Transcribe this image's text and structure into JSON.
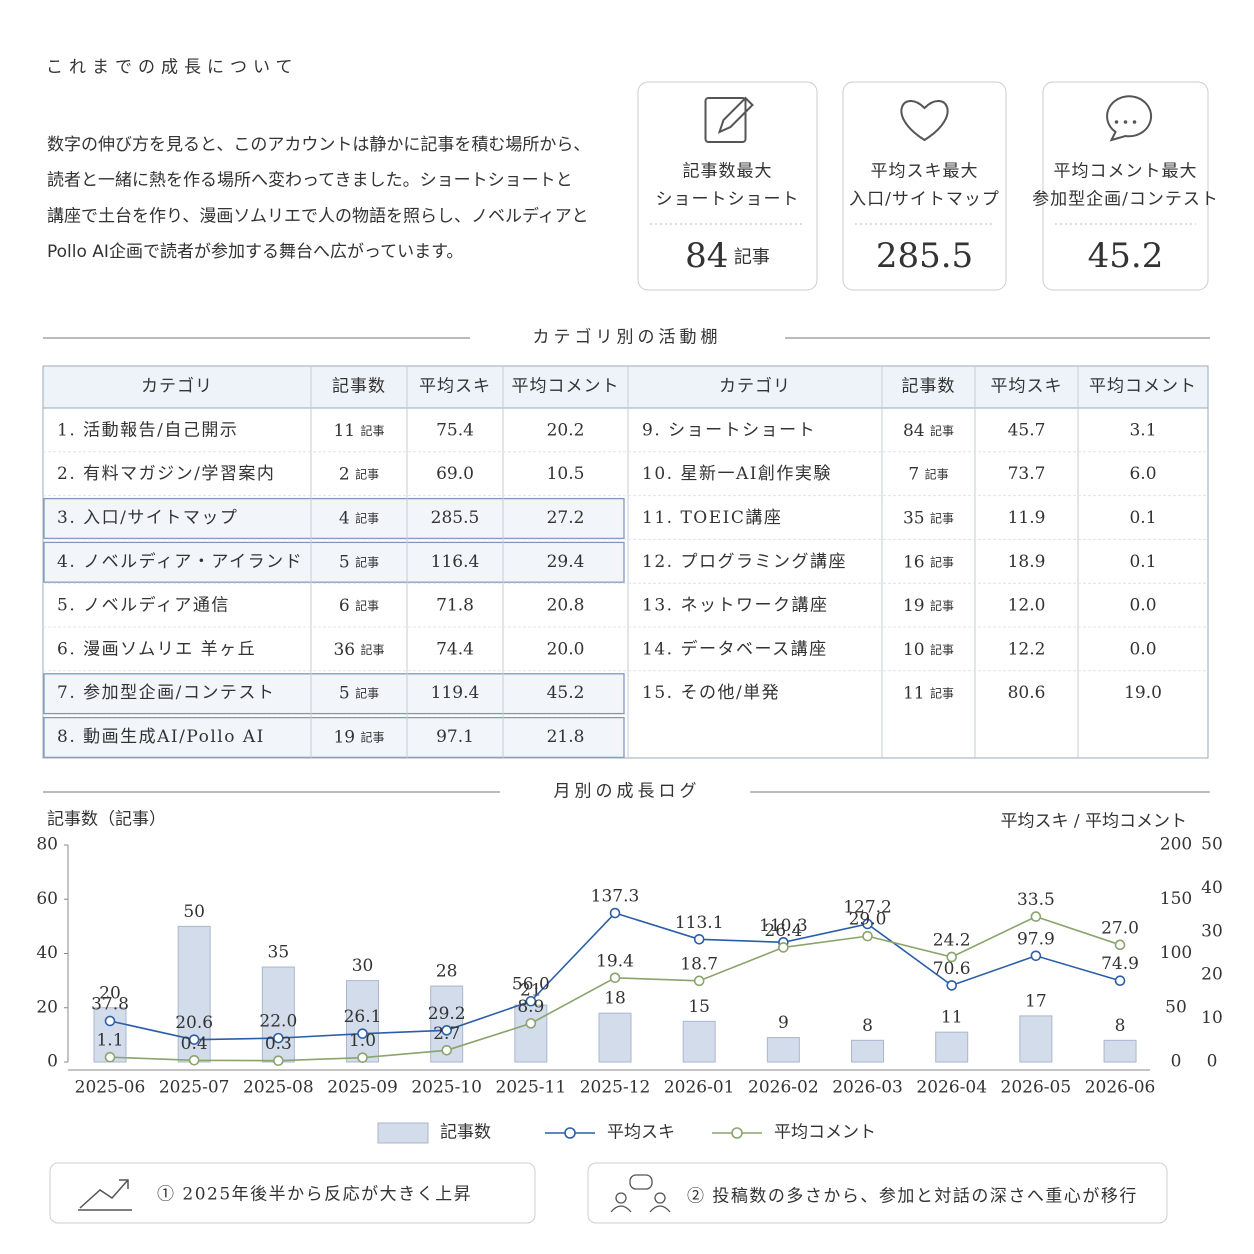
{
  "title": "これまでの成長について",
  "intro": {
    "lines": [
      "数字の伸び方を見ると、このアカウントは静かに記事を積む場所から、",
      "読者と一緒に熱を作る場所へ変わってきました。ショートショートと",
      "講座で土台を作り、漫画ソムリエで人の物語を照らし、ノベルディアと",
      "Pollo AI企画で読者が参加する舞台へ広がっています。"
    ]
  },
  "cards": [
    {
      "label": [
        "記事数最大",
        "ショートショート"
      ],
      "value": "84",
      "unit": "記事"
    },
    {
      "label": [
        "平均スキ最大",
        "入口/サイトマップ"
      ],
      "value": "285.5"
    },
    {
      "label": [
        "平均コメント最大",
        "参加型企画/コンテスト"
      ],
      "value": "45.2"
    }
  ],
  "section1": "カテゴリ別の活動棚",
  "table": {
    "columns": [
      "カテゴリ",
      "記事数",
      "平均スキ",
      "平均コメント"
    ],
    "unit": "記事",
    "rows": [
      {
        "cells": [
          "1. 活動報告/自己開示",
          "11",
          "75.4",
          "20.2"
        ]
      },
      {
        "cells": [
          "2. 有料マガジン/学習案内",
          "2",
          "69.0",
          "10.5"
        ]
      },
      {
        "cells": [
          "3. 入口/サイトマップ",
          "4",
          "285.5",
          "27.2"
        ],
        "highlight": true
      },
      {
        "cells": [
          "4. ノベルディア・アイランド",
          "5",
          "116.4",
          "29.4"
        ],
        "highlight": true
      },
      {
        "cells": [
          "5. ノベルディア通信",
          "6",
          "71.8",
          "20.8"
        ]
      },
      {
        "cells": [
          "6. 漫画ソムリエ 羊ヶ丘",
          "36",
          "74.4",
          "20.0"
        ]
      },
      {
        "cells": [
          "7. 参加型企画/コンテスト",
          "5",
          "119.4",
          "45.2"
        ],
        "highlight": true
      },
      {
        "cells": [
          "8. 動画生成AI/Pollo AI",
          "19",
          "97.1",
          "21.8"
        ],
        "highlight": true
      },
      {
        "cells": [
          "9. ショートショート",
          "84",
          "45.7",
          "3.1"
        ]
      },
      {
        "cells": [
          "10. 星新一AI創作実験",
          "7",
          "73.7",
          "6.0"
        ]
      },
      {
        "cells": [
          "11. TOEIC講座",
          "35",
          "11.9",
          "0.1"
        ]
      },
      {
        "cells": [
          "12. プログラミング講座",
          "16",
          "18.9",
          "0.1"
        ]
      },
      {
        "cells": [
          "13. ネットワーク講座",
          "19",
          "12.0",
          "0.0"
        ]
      },
      {
        "cells": [
          "14. データベース講座",
          "10",
          "12.2",
          "0.0"
        ]
      },
      {
        "cells": [
          "15. その他/単発",
          "11",
          "80.6",
          "19.0"
        ]
      }
    ]
  },
  "section2": "月別の成長ログ",
  "chart_data": {
    "type": "bar-line",
    "y_label": "記事数（記事）",
    "y2_label": "平均スキ / 平均コメント",
    "categories": [
      "2025-06",
      "2025-07",
      "2025-08",
      "2025-09",
      "2025-10",
      "2025-11",
      "2025-12",
      "2026-01",
      "2026-02",
      "2026-03",
      "2026-04",
      "2026-05",
      "2026-06"
    ],
    "series": [
      {
        "name": "記事数",
        "type": "bar",
        "color": "#d3dcea",
        "values": [
          20,
          50,
          35,
          30,
          28,
          21,
          18,
          15,
          9,
          8,
          11,
          17,
          8
        ]
      },
      {
        "name": "平均スキ",
        "type": "line",
        "axis": "y2",
        "color": "#2b5ea8",
        "values": [
          37.8,
          20.6,
          22.0,
          26.1,
          29.2,
          56.0,
          137.3,
          113.1,
          110.3,
          127.2,
          70.6,
          97.9,
          74.9
        ],
        "value_labels": [
          "37.8",
          "20.6",
          "22.0",
          "26.1",
          "29.2",
          "56.0",
          "137.3",
          "113.1",
          "110.3",
          "127.2",
          "70.6",
          "97.9",
          "74.9"
        ]
      },
      {
        "name": "平均コメント",
        "type": "line",
        "axis": "y3",
        "color": "#8aa46c",
        "values": [
          1.1,
          0.4,
          0.3,
          1.0,
          2.7,
          8.9,
          19.4,
          18.7,
          26.4,
          29.0,
          24.2,
          33.5,
          27.0
        ],
        "value_labels": [
          "1.1",
          "0.4",
          "0.3",
          "1.0",
          "2.7",
          "8.9",
          "19.4",
          "18.7",
          "26.4",
          "29.0",
          "24.2",
          "33.5",
          "27.0"
        ]
      }
    ],
    "ylim": [
      0,
      80
    ],
    "yticks": [
      0,
      20,
      40,
      60,
      80
    ],
    "y2lim": [
      0,
      200
    ],
    "y2ticks": [
      0,
      50,
      100,
      150,
      200
    ],
    "y3lim": [
      0,
      50
    ],
    "y3ticks": [
      0,
      10,
      20,
      30,
      40,
      50
    ]
  },
  "insights": [
    "① 2025年後半から反応が大きく上昇",
    "② 投稿数の多さから、参加と対話の深さへ重心が移行"
  ]
}
